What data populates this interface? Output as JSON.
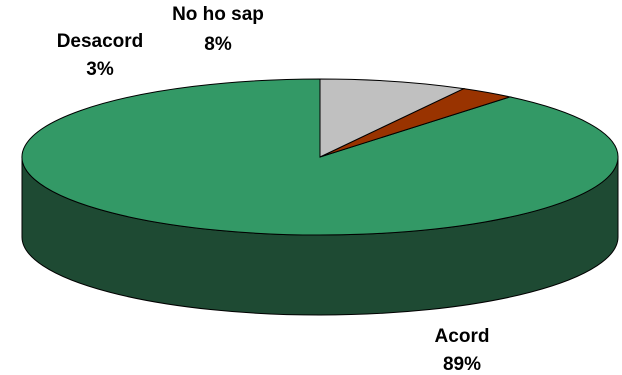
{
  "chart_data": {
    "type": "pie",
    "style": "3d",
    "start_angle_deg": 90,
    "direction": "counterclockwise",
    "slices": [
      {
        "label": "Acord",
        "value": 89,
        "value_label": "89%",
        "color": "#339966",
        "side_color": "#1e4a33"
      },
      {
        "label": "Desacord",
        "value": 3,
        "value_label": "3%",
        "color": "#993300",
        "side_color": "#5a1d00"
      },
      {
        "label": "No ho sap",
        "value": 8,
        "value_label": "8%",
        "color": "#c0c0c0",
        "side_color": "#8a8a8a"
      }
    ],
    "legend": "none"
  }
}
